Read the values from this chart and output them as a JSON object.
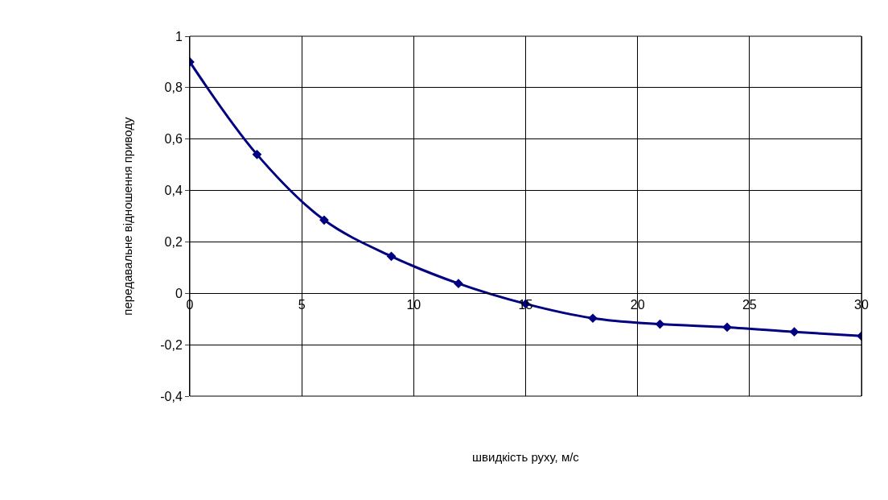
{
  "chart_data": {
    "type": "line",
    "xlabel": "швидкість руху, м/с",
    "ylabel": "передавальне відношення приводу",
    "x": [
      0,
      3,
      6,
      9,
      12,
      15,
      18,
      21,
      24,
      27,
      30
    ],
    "series": [
      {
        "color": "#000080",
        "values": [
          0.9,
          0.54,
          0.285,
          0.144,
          0.038,
          -0.041,
          -0.097,
          -0.12,
          -0.132,
          -0.15,
          -0.166
        ]
      }
    ],
    "xlim": [
      0,
      30
    ],
    "xticks": [
      0,
      5,
      10,
      15,
      20,
      25,
      30
    ],
    "ylim": [
      -0.4,
      1
    ],
    "yticks": [
      {
        "value": -0.4,
        "label": "-0,4"
      },
      {
        "value": -0.2,
        "label": "-0,2"
      },
      0,
      {
        "value": 0.2,
        "label": "0,2"
      },
      {
        "value": 0.4,
        "label": "0,4"
      },
      {
        "value": 0.6,
        "label": "0,6"
      },
      {
        "value": 0.8,
        "label": "0,8"
      },
      1
    ],
    "grid": true,
    "marker": "diamond",
    "line_style": "solid"
  }
}
